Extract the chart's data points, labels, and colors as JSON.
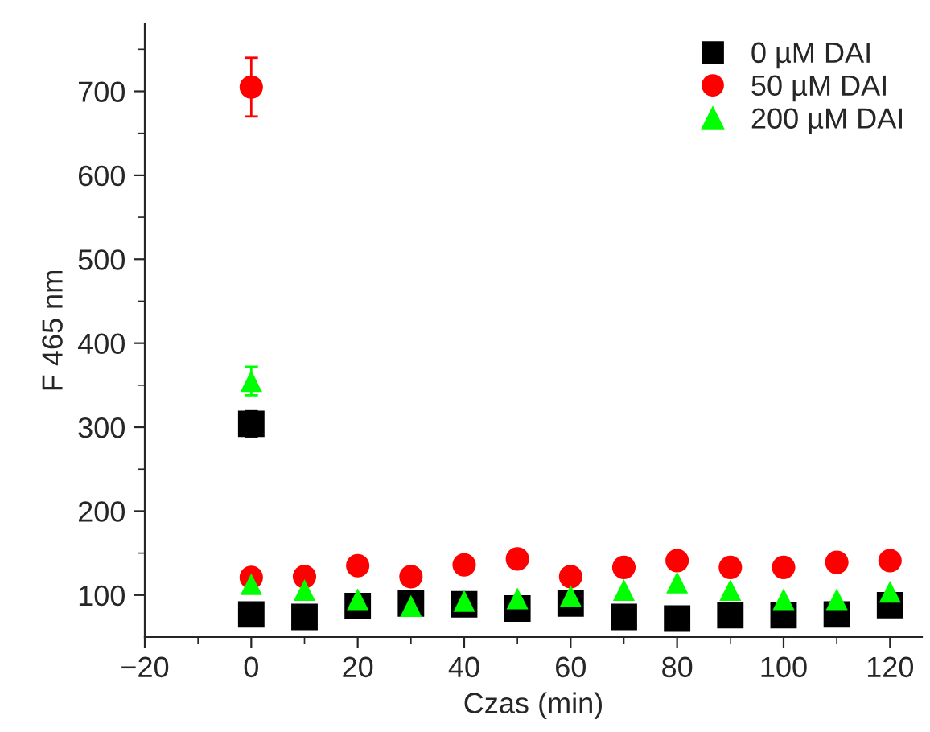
{
  "chart_data": {
    "type": "scatter",
    "xlabel": "Czas (min)",
    "ylabel": "F 465 nm",
    "xlim": [
      -20,
      126
    ],
    "ylim": [
      50,
      780
    ],
    "xticks": [
      -20,
      {
        "value": -10,
        "label": null
      },
      0,
      {
        "value": 10,
        "label": null
      },
      20,
      {
        "value": 30,
        "label": null
      },
      40,
      {
        "value": 50,
        "label": null
      },
      60,
      {
        "value": 70,
        "label": null
      },
      80,
      {
        "value": 90,
        "label": null
      },
      100,
      {
        "value": 110,
        "label": null
      },
      120
    ],
    "yticks": [
      100,
      {
        "value": 150,
        "label": null
      },
      200,
      {
        "value": 250,
        "label": null
      },
      300,
      {
        "value": 350,
        "label": null
      },
      400,
      {
        "value": 450,
        "label": null
      },
      500,
      {
        "value": 550,
        "label": null
      },
      600,
      {
        "value": 650,
        "label": null
      },
      700,
      {
        "value": 750,
        "label": null
      }
    ],
    "legend": "top right",
    "grid": false,
    "series": [
      {
        "name": "0 µM DAI",
        "color": "#000000",
        "marker": "square",
        "x": [
          0,
          0,
          10,
          20,
          30,
          40,
          50,
          60,
          70,
          80,
          90,
          100,
          110,
          120
        ],
        "values": [
          304,
          77,
          74,
          87,
          90,
          89,
          84,
          90,
          74,
          72,
          76,
          76,
          77,
          88
        ],
        "errors": [
          15,
          null,
          null,
          null,
          null,
          null,
          null,
          null,
          null,
          null,
          null,
          null,
          null,
          null
        ]
      },
      {
        "name": "50 µM DAI",
        "color": "#ff0000",
        "marker": "circle",
        "x": [
          0,
          0,
          10,
          20,
          30,
          40,
          50,
          60,
          70,
          80,
          90,
          100,
          110,
          120
        ],
        "values": [
          705,
          121,
          122,
          135,
          122,
          136,
          143,
          122,
          133,
          141,
          133,
          133,
          139,
          141
        ],
        "errors": [
          35,
          null,
          null,
          null,
          null,
          null,
          null,
          null,
          null,
          null,
          null,
          null,
          null,
          null
        ]
      },
      {
        "name": "200 µM DAI",
        "color": "#00ff00",
        "marker": "triangle",
        "x": [
          0,
          0,
          10,
          20,
          30,
          40,
          50,
          60,
          70,
          80,
          90,
          100,
          110,
          120
        ],
        "values": [
          355,
          113,
          106,
          95,
          87,
          93,
          96,
          99,
          106,
          115,
          106,
          95,
          95,
          104
        ],
        "errors": [
          17,
          null,
          null,
          null,
          null,
          null,
          null,
          null,
          null,
          null,
          null,
          null,
          null,
          null
        ]
      }
    ]
  }
}
